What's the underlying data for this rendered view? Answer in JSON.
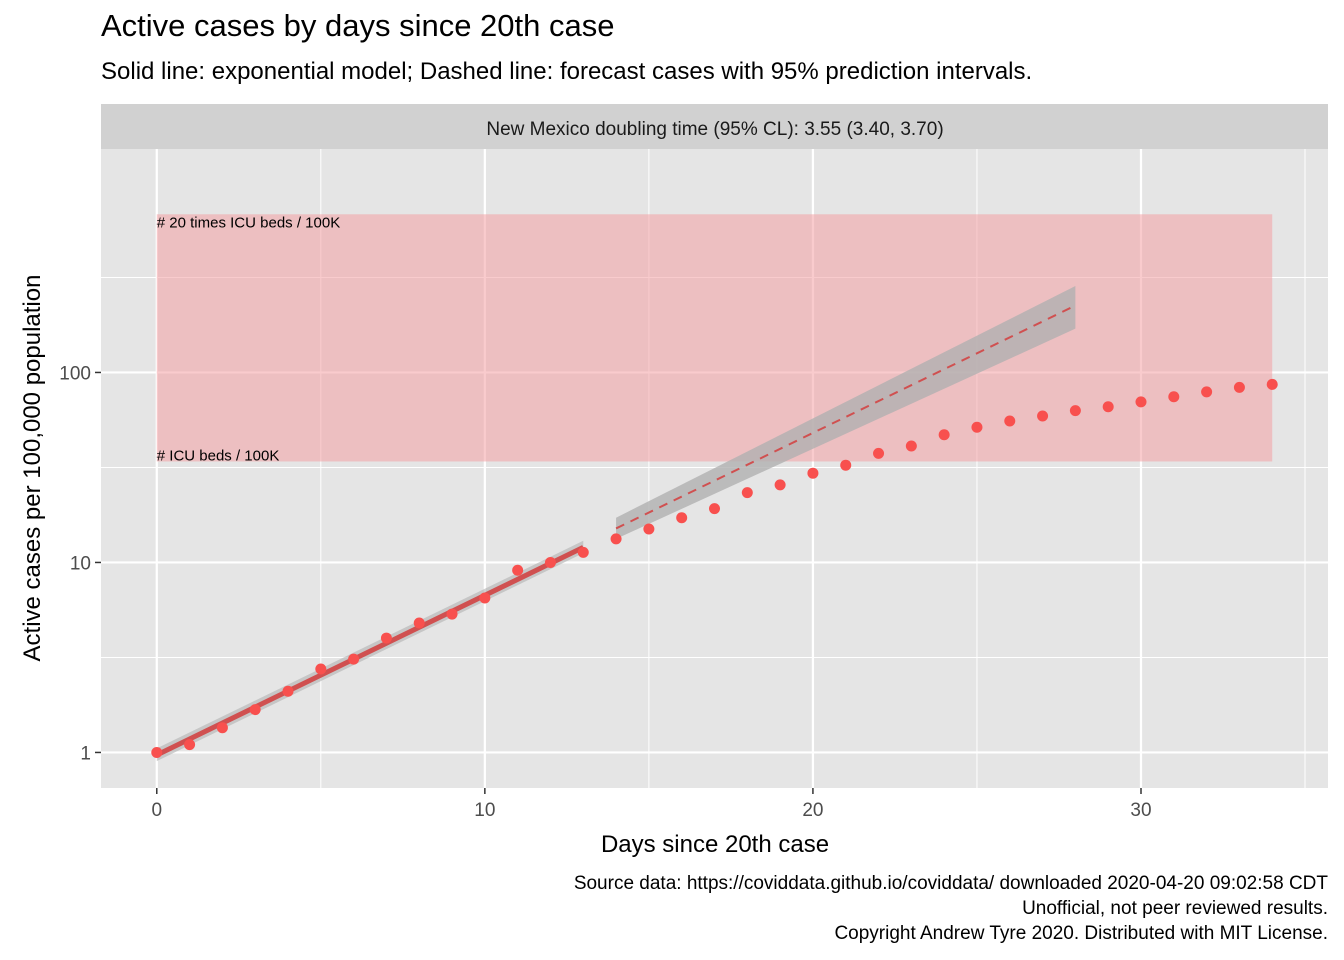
{
  "title": "Active cases by days since 20th case",
  "subtitle": "Solid line: exponential model; Dashed line: forecast cases with 95% prediction intervals.",
  "caption": {
    "line1": "Source data: https://coviddata.github.io/coviddata/ downloaded  2020-04-20 09:02:58 CDT",
    "line2": "Unofficial, not peer reviewed results.",
    "line3": "Copyright Andrew Tyre 2020. Distributed with MIT License."
  },
  "colors": {
    "panel_bg": "#e5e5e5",
    "strip_bg": "#d1d1d1",
    "grid": "#ffffff",
    "points": "#f8504e",
    "model_line": "#d05050",
    "band": "#b0b0b0",
    "icu_rect": "#f4a0a4"
  },
  "chart_data": {
    "type": "scatter",
    "facet_label": "New Mexico doubling time (95% CL): 3.55 (3.40, 3.70)",
    "xlabel": "Days since 20th case",
    "ylabel": "Active cases per 100,000 population",
    "x_ticks": [
      0,
      10,
      20,
      30
    ],
    "y_ticks": [
      1,
      10,
      100
    ],
    "y_scale": "log10",
    "xlim": [
      -1.7,
      35.7
    ],
    "ylim": [
      0.65,
      1500
    ],
    "grid": true,
    "icu_band": {
      "x": [
        0,
        34
      ],
      "y": [
        34,
        680
      ],
      "label_top": "# 20 times ICU beds / 100K",
      "label_bottom": "# ICU beds / 100K"
    },
    "series": [
      {
        "kind": "points",
        "x": [
          0,
          1,
          2,
          3,
          4,
          5,
          6,
          7,
          8,
          9,
          10,
          11,
          12,
          13,
          14,
          15,
          16,
          17,
          18,
          19,
          20,
          21,
          22,
          23,
          24,
          25,
          26,
          27,
          28,
          29,
          30,
          31,
          32,
          33,
          34
        ],
        "y": [
          1.0,
          1.1,
          1.35,
          1.68,
          2.1,
          2.75,
          3.1,
          4.0,
          4.8,
          5.35,
          6.5,
          9.1,
          10.0,
          11.3,
          13.3,
          15.0,
          17.2,
          19.2,
          23.3,
          25.6,
          29.5,
          32.5,
          37.5,
          41.0,
          47.0,
          51.5,
          55.5,
          59.0,
          63.0,
          66.0,
          70.0,
          74.5,
          79.0,
          83.5,
          86.5
        ]
      },
      {
        "kind": "model",
        "x": [
          0,
          13
        ],
        "y": [
          0.97,
          12.0
        ],
        "ci_low": [
          0.9,
          11.2
        ],
        "ci_high": [
          1.05,
          13.0
        ]
      },
      {
        "kind": "forecast",
        "x": [
          14,
          28
        ],
        "y": [
          15.1,
          225
        ],
        "pi_low": [
          13.3,
          170
        ],
        "pi_high": [
          17.2,
          285
        ]
      }
    ]
  }
}
